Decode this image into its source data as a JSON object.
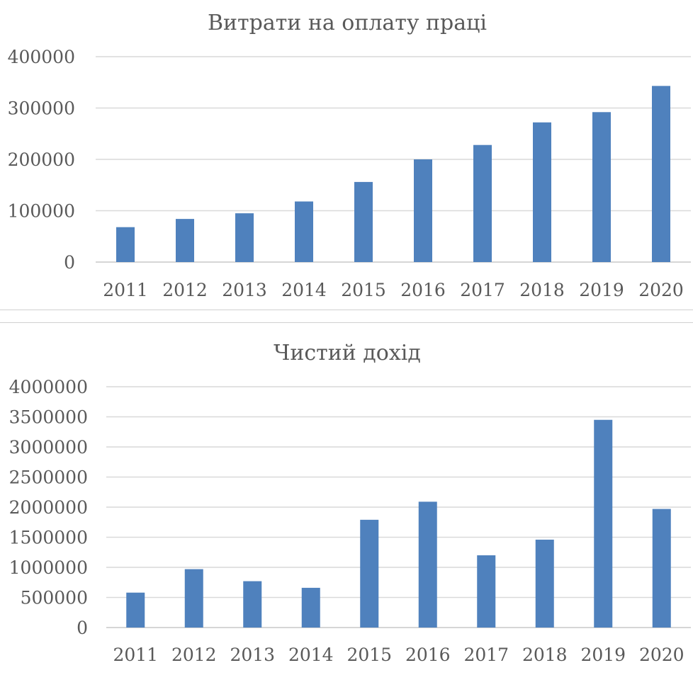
{
  "chart_data": [
    {
      "type": "bar",
      "title": "Витрати на оплату праці",
      "categories": [
        "2011",
        "2012",
        "2013",
        "2014",
        "2015",
        "2016",
        "2017",
        "2018",
        "2019",
        "2020"
      ],
      "values": [
        68000,
        84000,
        95000,
        118000,
        156000,
        200000,
        228000,
        272000,
        292000,
        343000
      ],
      "ylim": [
        0,
        400000
      ],
      "yticks": [
        "0",
        "100000",
        "200000",
        "300000",
        "400000"
      ],
      "grid": true,
      "legend": "none",
      "color": "#4f81bd"
    },
    {
      "type": "bar",
      "title": "Чистий дохід",
      "categories": [
        "2011",
        "2012",
        "2013",
        "2014",
        "2015",
        "2016",
        "2017",
        "2018",
        "2019",
        "2020"
      ],
      "values": [
        580000,
        970000,
        770000,
        660000,
        1790000,
        2090000,
        1200000,
        1460000,
        3450000,
        1970000
      ],
      "ylim": [
        0,
        4000000
      ],
      "yticks": [
        "0",
        "500000",
        "1000000",
        "1500000",
        "2000000",
        "2500000",
        "3000000",
        "3500000",
        "4000000"
      ],
      "grid": true,
      "legend": "none",
      "color": "#4f81bd"
    }
  ]
}
